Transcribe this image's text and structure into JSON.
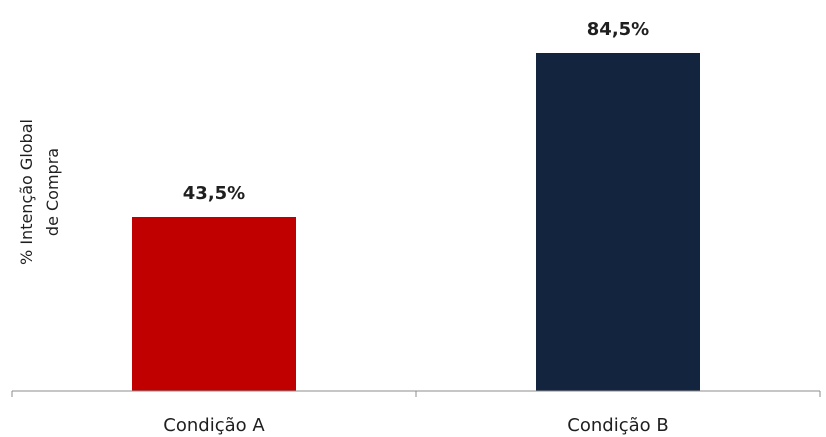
{
  "chart_data": {
    "type": "bar",
    "categories": [
      "Condição A",
      "Condição B"
    ],
    "values": [
      43.5,
      84.5
    ],
    "data_labels": [
      "43,5%",
      "84,5%"
    ],
    "colors": [
      "#c00000",
      "#13243f"
    ],
    "ylabel_lines": [
      "% Intenção Global",
      "de Compra"
    ],
    "ylim": [
      0,
      100
    ],
    "grid": false,
    "legend": "none"
  }
}
